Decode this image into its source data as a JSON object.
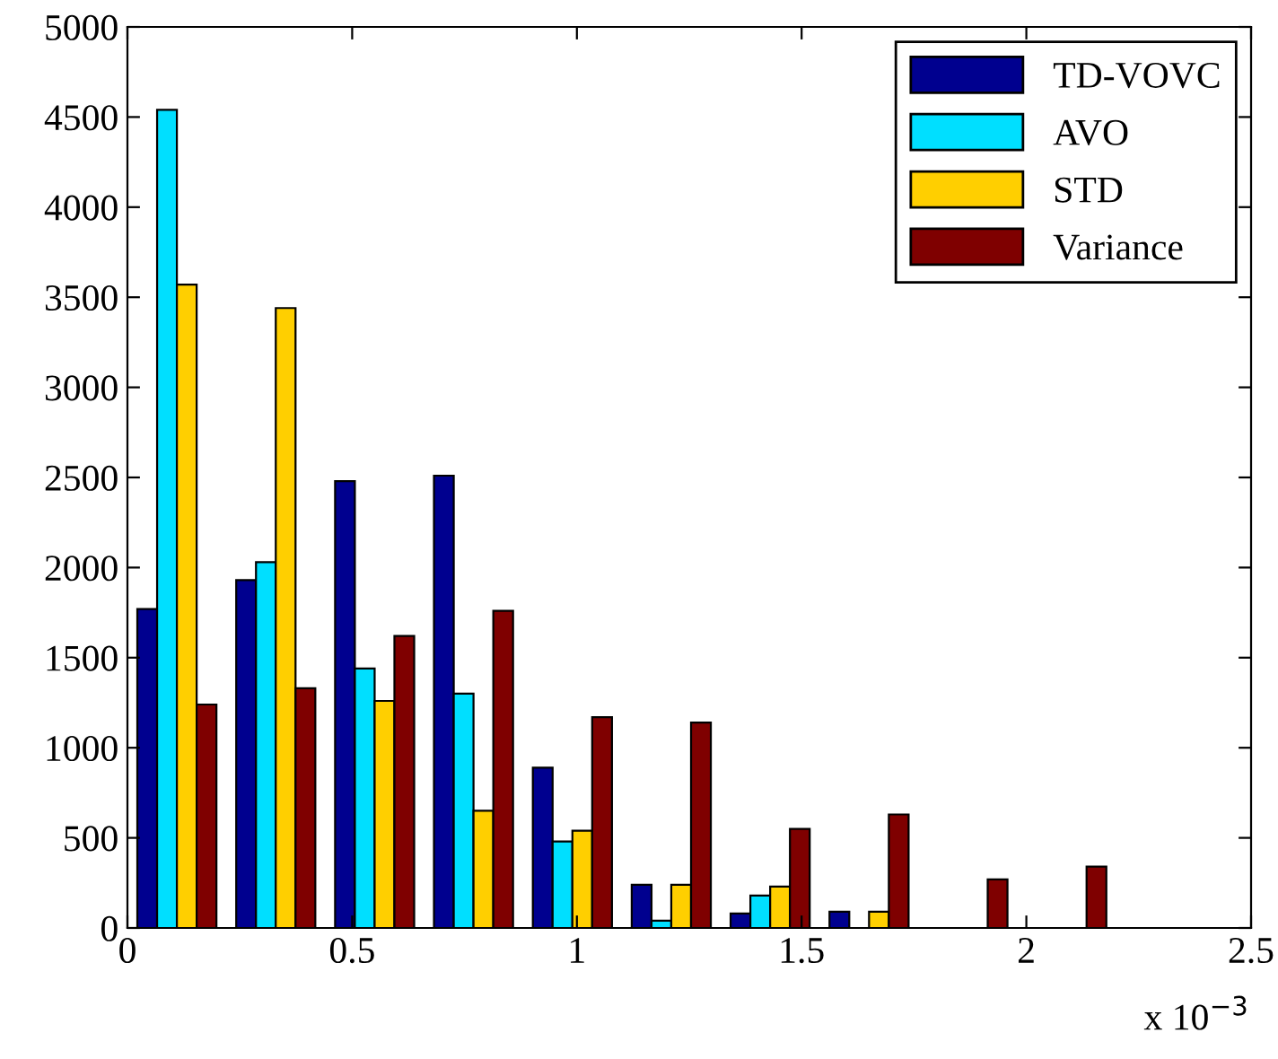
{
  "chart_data": {
    "type": "bar",
    "x": [
      0.11,
      0.33,
      0.55,
      0.77,
      0.99,
      1.21,
      1.43,
      1.65,
      1.87,
      2.09
    ],
    "series": [
      {
        "name": "TD-VOVC",
        "color": "#00008f",
        "values": [
          1770,
          1930,
          2480,
          2510,
          890,
          240,
          80,
          90,
          0,
          0
        ]
      },
      {
        "name": "AVO",
        "color": "#00dfff",
        "values": [
          4540,
          2030,
          1440,
          1300,
          480,
          40,
          180,
          0,
          0,
          0
        ]
      },
      {
        "name": "STD",
        "color": "#ffcf00",
        "values": [
          3570,
          3440,
          1260,
          650,
          540,
          240,
          230,
          90,
          0,
          0
        ]
      },
      {
        "name": "Variance",
        "color": "#7f0000",
        "values": [
          1240,
          1330,
          1620,
          1760,
          1170,
          1140,
          550,
          630,
          270,
          340
        ]
      }
    ],
    "xlim": [
      0,
      2.5
    ],
    "xticks": [
      0,
      0.5,
      1,
      1.5,
      2,
      2.5
    ],
    "ylim": [
      0,
      5000
    ],
    "yticks": [
      0,
      500,
      1000,
      1500,
      2000,
      2500,
      3000,
      3500,
      4000,
      4500,
      5000
    ],
    "annotations": [
      "x 10$^{−3}$"
    ],
    "legend": "top right",
    "grid": false
  }
}
